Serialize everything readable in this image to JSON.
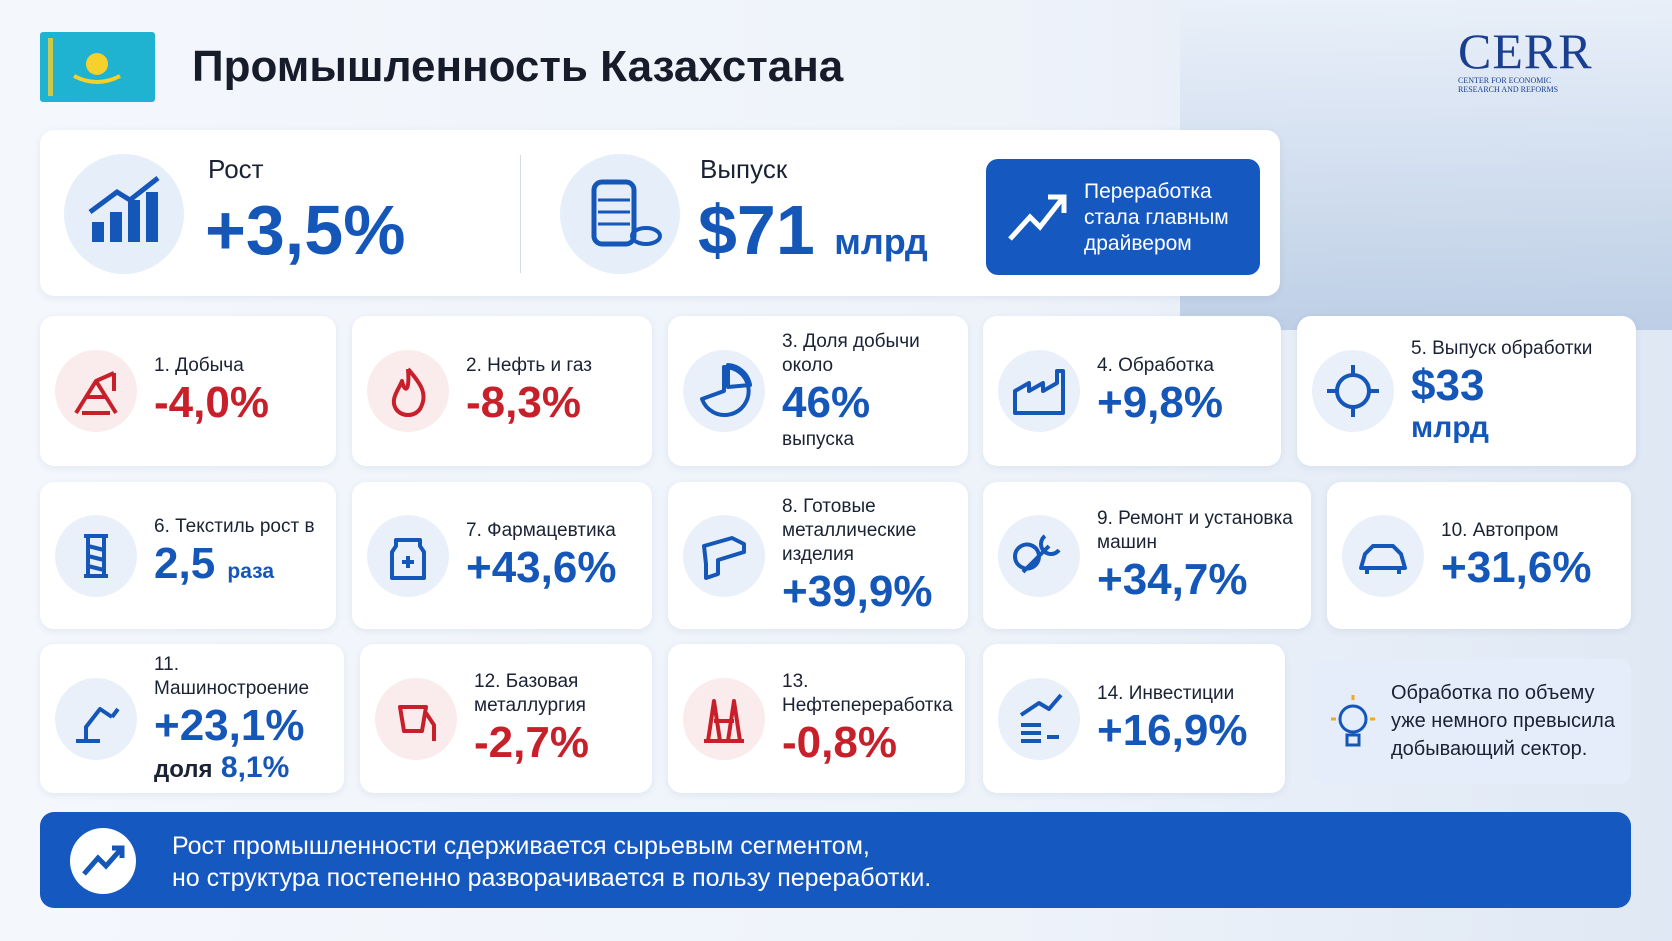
{
  "header": {
    "title": "Промышленность Казахстана",
    "logo": {
      "name": "CERR",
      "subtitle": "CENTER FOR ECONOMIC RESEARCH AND REFORMS"
    }
  },
  "summary": {
    "growth": {
      "label": "Рост",
      "value": "+3,5%"
    },
    "output": {
      "label": "Выпуск",
      "value": "$71",
      "unit": "млрд"
    },
    "highlight": "Переработка стала главным драйвером"
  },
  "cards": [
    {
      "label": "1. Добыча",
      "value": "-4,0%",
      "color": "#c8202a"
    },
    {
      "label": "2. Нефть и газ",
      "value": "-8,3%",
      "color": "#c8202a"
    },
    {
      "label": "3. Доля добычи около",
      "value": "46%",
      "suffix": "выпуска",
      "color": "#1457b8"
    },
    {
      "label": "4. Обработка",
      "value": "+9,8%",
      "color": "#1457b8"
    },
    {
      "label": "5. Выпуск обработки",
      "value": "$33",
      "suffix": "млрд",
      "color": "#1457b8"
    },
    {
      "label": "6. Текстиль рост в",
      "value": "2,5",
      "unit": "раза",
      "color": "#1457b8"
    },
    {
      "label": "7. Фармацевтика",
      "value": "+43,6%",
      "color": "#1457b8"
    },
    {
      "label": "8. Готовые металлические изделия",
      "value": "+39,9%",
      "color": "#1457b8"
    },
    {
      "label": "9. Ремонт и установка машин",
      "value": "+34,7%",
      "color": "#1457b8"
    },
    {
      "label": "10. Автопром",
      "value": "+31,6%",
      "color": "#1457b8"
    },
    {
      "label": "11. Машиностроение",
      "value": "+23,1%",
      "extra_label": "доля",
      "extra_value": "8,1%",
      "color": "#1457b8"
    },
    {
      "label": "12. Базовая металлургия",
      "value": "-2,7%",
      "color": "#c8202a"
    },
    {
      "label": "13. Нефтепереработка",
      "value": "-0,8%",
      "color": "#c8202a"
    },
    {
      "label": "14. Инвестиции",
      "value": "+16,9%",
      "color": "#1457b8"
    }
  ],
  "note": "Обработка по объему уже немного превысила добывающий сектор.",
  "footer": [
    "Рост промышленности сдерживается сырьевым сегментом,",
    "но структура постепенно разворачивается в пользу переработки."
  ]
}
